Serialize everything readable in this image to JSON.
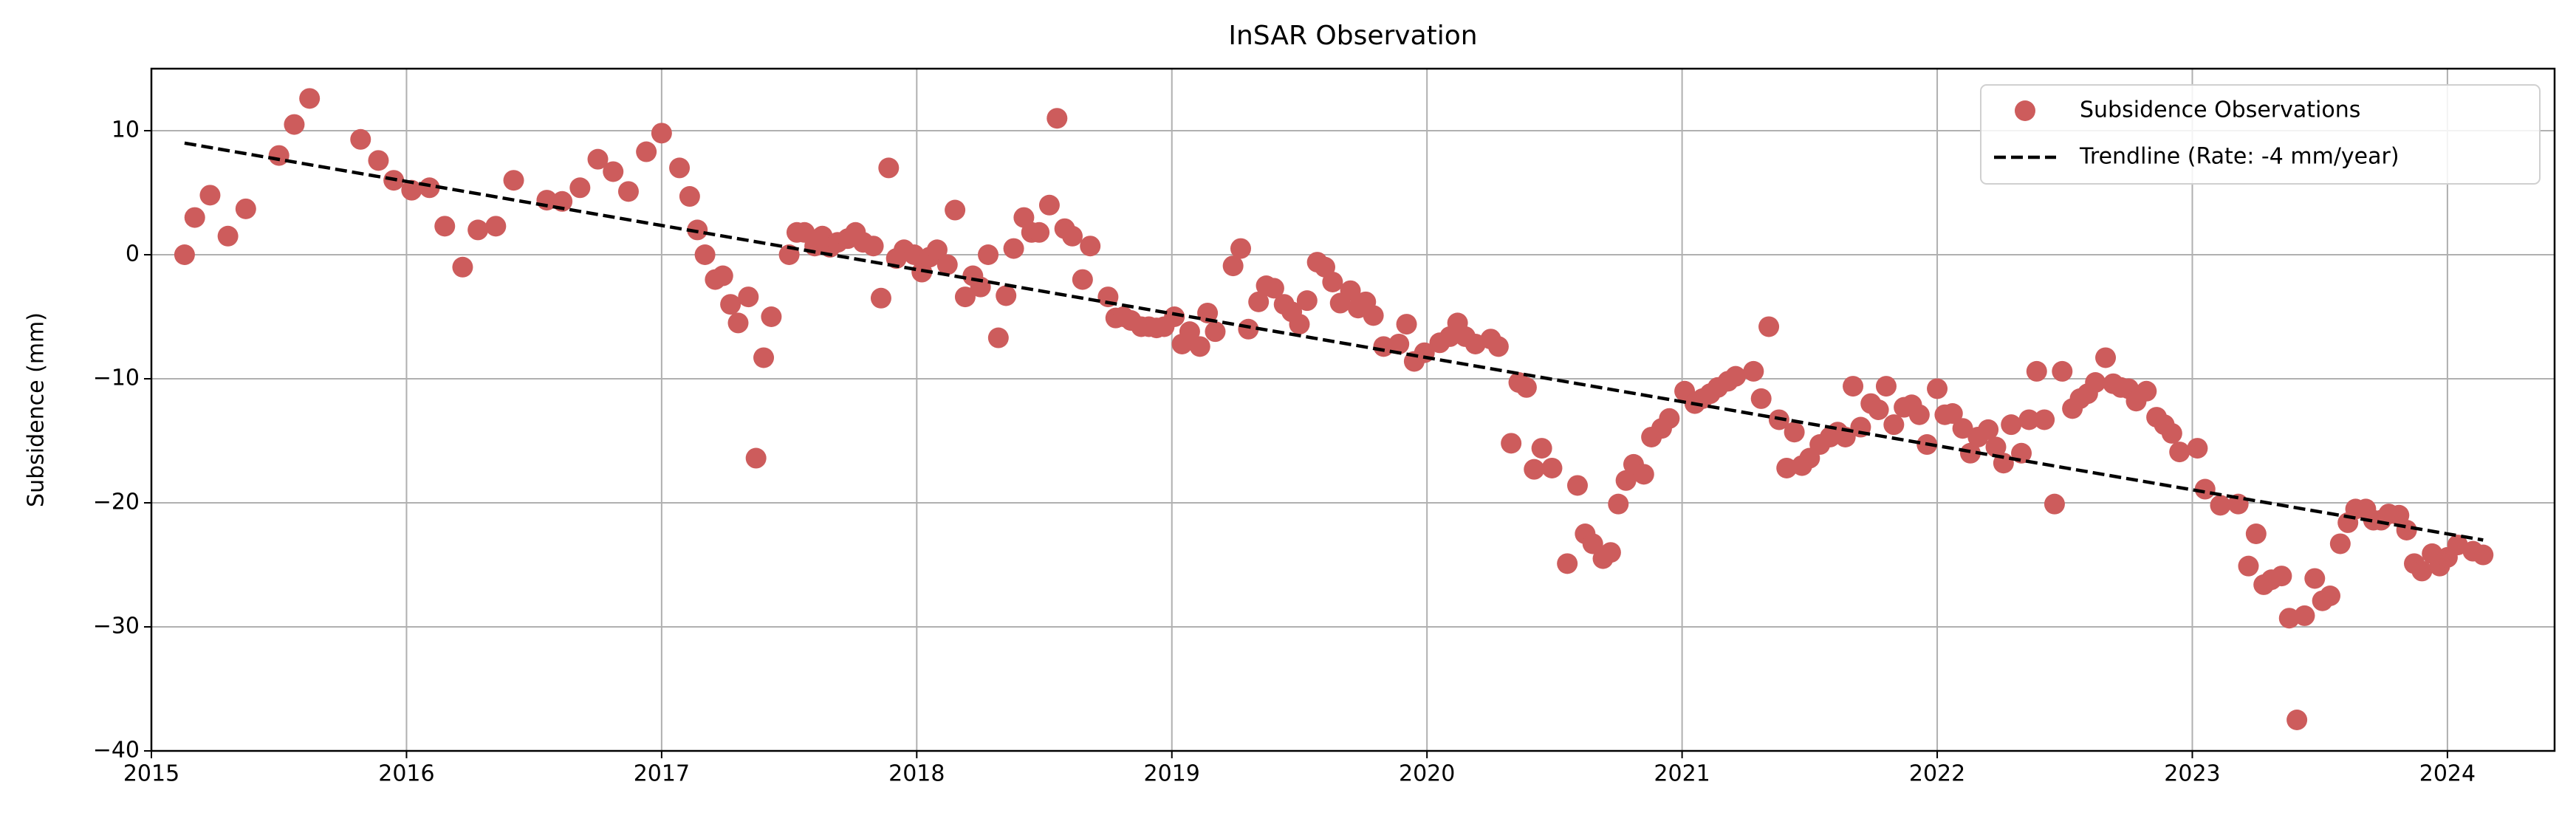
{
  "chart_data": {
    "type": "scatter",
    "title": "InSAR Observation",
    "y_label": "Subsidence (mm)",
    "xlim": [
      2015,
      2024.42
    ],
    "xticks": [
      2015,
      2016,
      2017,
      2018,
      2019,
      2020,
      2021,
      2022,
      2023,
      2024
    ],
    "ylim": [
      -40,
      15
    ],
    "yticks": [
      -40,
      -30,
      -20,
      -10,
      0,
      10
    ],
    "grid": true,
    "legend": "upper right",
    "series": [
      {
        "name": "Subsidence Observations",
        "color": "#cd5c5c",
        "style": "markers",
        "x": [
          2015.13,
          2015.17,
          2015.23,
          2015.3,
          2015.37,
          2015.5,
          2015.56,
          2015.62,
          2015.82,
          2015.89,
          2015.95,
          2016.02,
          2016.09,
          2016.15,
          2016.22,
          2016.28,
          2016.35,
          2016.42,
          2016.55,
          2016.61,
          2016.68,
          2016.75,
          2016.81,
          2016.87,
          2016.94,
          2017.0,
          2017.07,
          2017.11,
          2017.14,
          2017.17,
          2017.21,
          2017.24,
          2017.27,
          2017.3,
          2017.34,
          2017.37,
          2017.4,
          2017.43,
          2017.5,
          2017.53,
          2017.56,
          2017.6,
          2017.63,
          2017.66,
          2017.69,
          2017.73,
          2017.76,
          2017.79,
          2017.83,
          2017.86,
          2017.89,
          2017.92,
          2017.95,
          2017.99,
          2018.02,
          2018.05,
          2018.08,
          2018.12,
          2018.15,
          2018.19,
          2018.22,
          2018.25,
          2018.28,
          2018.32,
          2018.35,
          2018.38,
          2018.42,
          2018.45,
          2018.48,
          2018.52,
          2018.55,
          2018.58,
          2018.61,
          2018.65,
          2018.68,
          2018.75,
          2018.78,
          2018.81,
          2018.84,
          2018.88,
          2018.91,
          2018.94,
          2018.97,
          2019.01,
          2019.04,
          2019.07,
          2019.11,
          2019.14,
          2019.17,
          2019.24,
          2019.27,
          2019.3,
          2019.34,
          2019.37,
          2019.4,
          2019.44,
          2019.47,
          2019.5,
          2019.53,
          2019.57,
          2019.6,
          2019.63,
          2019.66,
          2019.7,
          2019.73,
          2019.76,
          2019.79,
          2019.83,
          2019.89,
          2019.92,
          2019.95,
          2019.99,
          2020.05,
          2020.09,
          2020.12,
          2020.15,
          2020.19,
          2020.25,
          2020.28,
          2020.33,
          2020.36,
          2020.39,
          2020.42,
          2020.45,
          2020.49,
          2020.55,
          2020.59,
          2020.62,
          2020.65,
          2020.69,
          2020.72,
          2020.75,
          2020.78,
          2020.81,
          2020.85,
          2020.88,
          2020.92,
          2020.95,
          2021.01,
          2021.05,
          2021.08,
          2021.11,
          2021.14,
          2021.18,
          2021.21,
          2021.28,
          2021.31,
          2021.34,
          2021.38,
          2021.41,
          2021.44,
          2021.47,
          2021.5,
          2021.54,
          2021.58,
          2021.61,
          2021.64,
          2021.67,
          2021.7,
          2021.74,
          2021.77,
          2021.8,
          2021.83,
          2021.87,
          2021.9,
          2021.93,
          2021.96,
          2022.0,
          2022.03,
          2022.06,
          2022.1,
          2022.13,
          2022.16,
          2022.2,
          2022.23,
          2022.26,
          2022.29,
          2022.33,
          2022.36,
          2022.39,
          2022.42,
          2022.46,
          2022.49,
          2022.53,
          2022.56,
          2022.59,
          2022.62,
          2022.66,
          2022.69,
          2022.72,
          2022.75,
          2022.78,
          2022.82,
          2022.86,
          2022.89,
          2022.92,
          2022.95,
          2023.02,
          2023.05,
          2023.11,
          2023.18,
          2023.22,
          2023.25,
          2023.28,
          2023.31,
          2023.35,
          2023.38,
          2023.41,
          2023.44,
          2023.48,
          2023.51,
          2023.54,
          2023.58,
          2023.61,
          2023.64,
          2023.68,
          2023.71,
          2023.74,
          2023.77,
          2023.81,
          2023.84,
          2023.87,
          2023.9,
          2023.94,
          2023.97,
          2024.0,
          2024.04,
          2024.1,
          2024.14
        ],
        "values": [
          0,
          3,
          4.8,
          1.5,
          3.7,
          8,
          10.5,
          12.6,
          9.3,
          7.6,
          6,
          5.2,
          5.4,
          2.3,
          -1,
          2,
          2.3,
          6,
          4.4,
          4.3,
          5.4,
          7.7,
          6.7,
          5.1,
          8.3,
          9.8,
          7,
          4.7,
          2,
          0,
          -2,
          -1.7,
          -4,
          -5.5,
          -3.4,
          -16.4,
          -8.3,
          -5,
          0,
          1.8,
          1.8,
          0.7,
          1.5,
          0.6,
          1,
          1.3,
          1.8,
          1,
          0.7,
          -3.5,
          7,
          -0.3,
          0.4,
          0,
          -1.4,
          -0.2,
          0.4,
          -0.8,
          3.6,
          -3.4,
          -1.7,
          -2.6,
          0,
          -6.7,
          -3.3,
          0.5,
          3,
          1.8,
          1.8,
          4,
          11,
          2.1,
          1.5,
          -2,
          0.7,
          -3.4,
          -5.1,
          -5,
          -5.3,
          -5.8,
          -5.8,
          -5.9,
          -5.8,
          -5,
          -7.2,
          -6.2,
          -7.4,
          -4.7,
          -6.2,
          -0.9,
          0.5,
          -6,
          -3.8,
          -2.5,
          -2.7,
          -4,
          -4.6,
          -5.6,
          -3.7,
          -0.6,
          -1,
          -2.2,
          -3.9,
          -2.9,
          -4.3,
          -3.8,
          -4.9,
          -7.4,
          -7.2,
          -5.6,
          -8.6,
          -7.9,
          -7.1,
          -6.6,
          -5.5,
          -6.6,
          -7.2,
          -6.8,
          -7.4,
          -15.2,
          -10.3,
          -10.7,
          -17.3,
          -15.6,
          -17.2,
          -24.9,
          -18.6,
          -22.5,
          -23.3,
          -24.5,
          -24,
          -20.1,
          -18.2,
          -16.9,
          -17.7,
          -14.7,
          -14,
          -13.2,
          -11,
          -12,
          -11.6,
          -11.2,
          -10.7,
          -10.2,
          -9.8,
          -9.4,
          -11.6,
          -5.8,
          -13.3,
          -17.2,
          -14.3,
          -17,
          -16.4,
          -15.3,
          -14.7,
          -14.3,
          -14.7,
          -10.6,
          -13.9,
          -12,
          -12.5,
          -10.6,
          -13.7,
          -12.3,
          -12.1,
          -12.9,
          -15.3,
          -10.8,
          -12.9,
          -12.8,
          -14,
          -16,
          -14.7,
          -14.1,
          -15.5,
          -16.8,
          -13.7,
          -16,
          -13.3,
          -9.4,
          -13.3,
          -20.1,
          -9.4,
          -12.4,
          -11.6,
          -11.2,
          -10.3,
          -8.3,
          -10.4,
          -10.7,
          -10.8,
          -11.8,
          -11,
          -13.1,
          -13.7,
          -14.4,
          -15.9,
          -15.6,
          -18.9,
          -20.2,
          -20.1,
          -25.1,
          -22.5,
          -26.6,
          -26.2,
          -25.9,
          -29.3,
          -37.5,
          -29.1,
          -26.1,
          -27.9,
          -27.5,
          -23.3,
          -21.6,
          -20.5,
          -20.5,
          -21.4,
          -21.4,
          -20.9,
          -21,
          -22.2,
          -24.9,
          -25.5,
          -24.1,
          -25.1,
          -24.4,
          -23.4,
          -23.9,
          -24.2
        ]
      },
      {
        "name": "Trendline (Rate: -4 mm/year)",
        "color": "#000000",
        "style": "dashed",
        "x": [
          2015.13,
          2024.14
        ],
        "values": [
          9,
          -23
        ]
      }
    ]
  }
}
